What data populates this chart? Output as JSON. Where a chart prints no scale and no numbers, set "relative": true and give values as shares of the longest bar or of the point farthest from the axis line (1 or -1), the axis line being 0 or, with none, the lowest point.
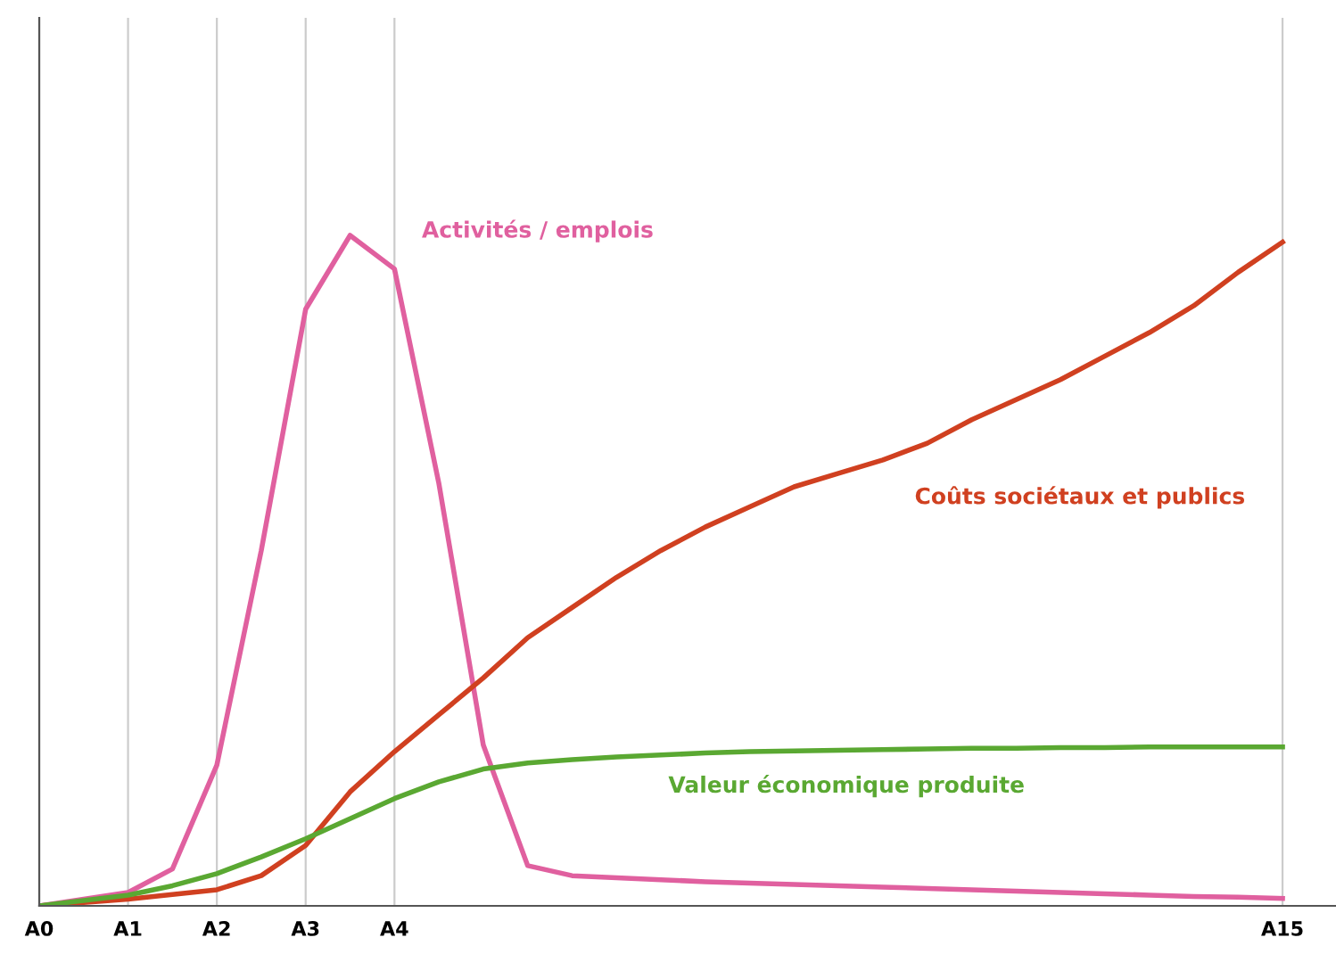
{
  "chart_data": {
    "type": "line",
    "relative": true,
    "grid": "x",
    "legend": false,
    "marker": "none",
    "line_style": "solid",
    "categories": [
      "A0",
      null,
      "A1",
      null,
      "A2",
      null,
      "A3",
      null,
      "A4",
      null,
      null,
      null,
      null,
      null,
      null,
      null,
      null,
      null,
      null,
      null,
      null,
      null,
      null,
      null,
      null,
      null,
      null,
      null,
      "A15"
    ],
    "series": [
      {
        "name": "Activités / emplois",
        "color": "#e0609f",
        "values": [
          0,
          0.01,
          0.02,
          0.055,
          0.21,
          0.53,
          0.89,
          1.0,
          0.95,
          0.63,
          0.24,
          0.06,
          0.045,
          0.042,
          0.039,
          0.036,
          0.034,
          0.032,
          0.03,
          0.028,
          0.026,
          0.024,
          0.022,
          0.02,
          0.018,
          0.016,
          0.014,
          0.013,
          0.011
        ]
      },
      {
        "name": "Coûts sociétaux et publics",
        "color": "#d04020",
        "values": [
          0,
          0.005,
          0.01,
          0.017,
          0.024,
          0.045,
          0.09,
          0.17,
          0.23,
          0.285,
          0.34,
          0.4,
          0.445,
          0.49,
          0.53,
          0.565,
          0.595,
          0.625,
          0.645,
          0.665,
          0.69,
          0.725,
          0.755,
          0.785,
          0.82,
          0.855,
          0.895,
          0.945,
          0.99
        ]
      },
      {
        "name": "Valeur économique produite",
        "color": "#5aa832",
        "values": [
          0,
          0.008,
          0.016,
          0.03,
          0.048,
          0.073,
          0.1,
          0.13,
          0.16,
          0.185,
          0.204,
          0.213,
          0.218,
          0.222,
          0.225,
          0.228,
          0.23,
          0.231,
          0.232,
          0.233,
          0.234,
          0.235,
          0.235,
          0.236,
          0.236,
          0.237,
          0.237,
          0.237,
          0.237
        ]
      }
    ]
  }
}
